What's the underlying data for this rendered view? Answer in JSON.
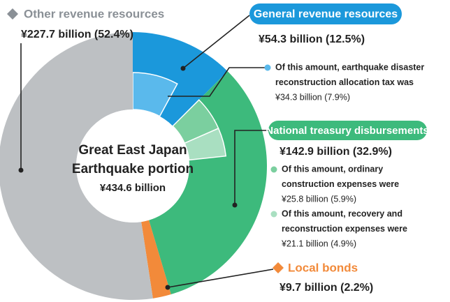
{
  "chart_data": {
    "type": "donut",
    "center_label": [
      "Great East Japan",
      "Earthquake portion"
    ],
    "center_value": "¥434.6 billion",
    "categories": [
      "General revenue resources",
      "National treasury disbursements",
      "Local bonds",
      "Other revenue resources"
    ],
    "values": [
      12.5,
      32.9,
      2.2,
      52.4
    ],
    "value_labels": [
      "¥54.3 billion (12.5%)",
      "¥142.9 billion (32.9%)",
      "¥9.7 billion (2.2%)",
      "¥227.7 billion (52.4%)"
    ],
    "colors": [
      "#1b98db",
      "#3dba7c",
      "#f28a3a",
      "#bdc0c3"
    ],
    "breakdowns": [
      [
        {
          "note": [
            "Of this amount, earthquake disaster",
            "reconstruction allocation tax was"
          ],
          "value": 7.9,
          "value_label": "¥34.3 billion (7.9%)",
          "color": "#5ab9ec"
        }
      ],
      [
        {
          "note": [
            "Of this amount, ordinary",
            "construction expenses were"
          ],
          "value": 5.9,
          "value_label": "¥25.8 billion (5.9%)",
          "color": "#7bcf9f"
        },
        {
          "note": [
            "Of this amount, recovery and",
            "reconstruction expenses were"
          ],
          "value": 4.9,
          "value_label": "¥21.1 billion (4.9%)",
          "color": "#a9dfc1"
        }
      ],
      [],
      []
    ]
  }
}
